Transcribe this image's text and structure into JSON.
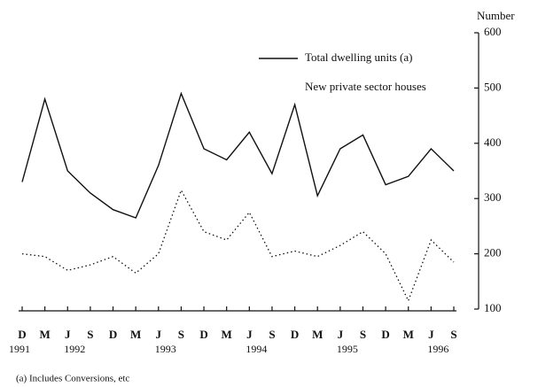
{
  "chart_data": {
    "type": "line",
    "y_axis_label": "Number",
    "footnote": "(a) Includes Conversions, etc",
    "categories": [
      "D",
      "M",
      "J",
      "S",
      "D",
      "M",
      "J",
      "S",
      "D",
      "M",
      "J",
      "S",
      "D",
      "M",
      "J",
      "S",
      "D",
      "M",
      "J",
      "S"
    ],
    "year_labels": [
      "1991",
      null,
      "1992",
      null,
      null,
      null,
      "1993",
      null,
      null,
      null,
      "1994",
      null,
      null,
      null,
      "1995",
      null,
      null,
      null,
      "1996",
      null
    ],
    "series": [
      {
        "name": "Total dwelling units (a)",
        "color": "#111111",
        "style": "solid",
        "values": [
          330,
          480,
          350,
          310,
          280,
          265,
          360,
          490,
          390,
          370,
          420,
          345,
          470,
          305,
          390,
          415,
          325,
          340,
          390,
          350
        ]
      },
      {
        "name": "New private sector houses",
        "color": "#111111",
        "style": "dotted",
        "values": [
          200,
          195,
          170,
          180,
          195,
          165,
          200,
          315,
          240,
          225,
          275,
          195,
          205,
          195,
          215,
          240,
          200,
          115,
          225,
          185
        ]
      }
    ],
    "ylim": [
      100,
      600
    ],
    "yticks": [
      100,
      200,
      300,
      400,
      500,
      600
    ],
    "y_axis_side": "right",
    "grid": false
  }
}
